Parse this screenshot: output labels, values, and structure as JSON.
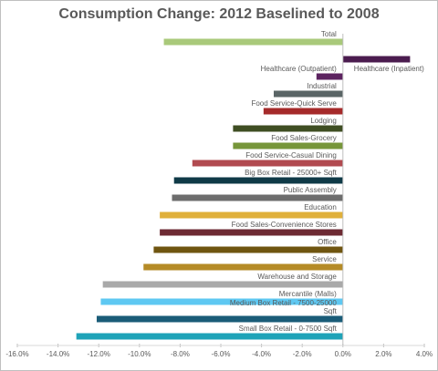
{
  "chart_data": {
    "type": "bar",
    "orientation": "horizontal",
    "title": "Consumption Change: 2012 Baselined to 2008",
    "categories": [
      "Total",
      "Healthcare (Inpatient)",
      "Healthcare (Outpatient)",
      "Industrial",
      "Food Service-Quick Serve",
      "Lodging",
      "Food Sales-Grocery",
      "Food Service-Casual Dining",
      "Big Box Retail - 25000+ Sqft",
      "Public Assembly",
      "Education",
      "Food Sales-Convenience Stores",
      "Office",
      "Service",
      "Warehouse and Storage",
      "Mercantile (Malls)",
      "Medium Box Retail - 7500-25000 Sqft",
      "Small Box Retail - 0-7500 Sqft"
    ],
    "values": [
      -8.8,
      3.3,
      -1.3,
      -3.4,
      -3.9,
      -5.4,
      -5.4,
      -7.4,
      -8.3,
      -8.4,
      -9.0,
      -9.0,
      -9.3,
      -9.8,
      -11.8,
      -11.9,
      -12.1,
      -13.1
    ],
    "colors": [
      "#a9c97a",
      "#4b1c4f",
      "#5c2360",
      "#5a6566",
      "#a52a2a",
      "#3f4e23",
      "#77963a",
      "#b14a50",
      "#0f3a47",
      "#6d6d6d",
      "#e0b03a",
      "#6d2a33",
      "#6f5510",
      "#b58b27",
      "#a9a9a9",
      "#5ec8f2",
      "#1a5c78",
      "#1fa3b8"
    ],
    "xlim": [
      -16,
      4
    ],
    "xticks": [
      {
        "value": -16,
        "label": "-16.0%"
      },
      {
        "value": -14,
        "label": "-14.0%"
      },
      {
        "value": -12,
        "label": "-12.0%"
      },
      {
        "value": -10,
        "label": "-10.0%"
      },
      {
        "value": -8,
        "label": "-8.0%"
      },
      {
        "value": -6,
        "label": "-6.0%"
      },
      {
        "value": -4,
        "label": "-4.0%"
      },
      {
        "value": -2,
        "label": "-2.0%"
      },
      {
        "value": 0,
        "label": "0.0%"
      },
      {
        "value": 2,
        "label": "2.0%"
      },
      {
        "value": 4,
        "label": "4.0%"
      }
    ],
    "grid": false
  }
}
